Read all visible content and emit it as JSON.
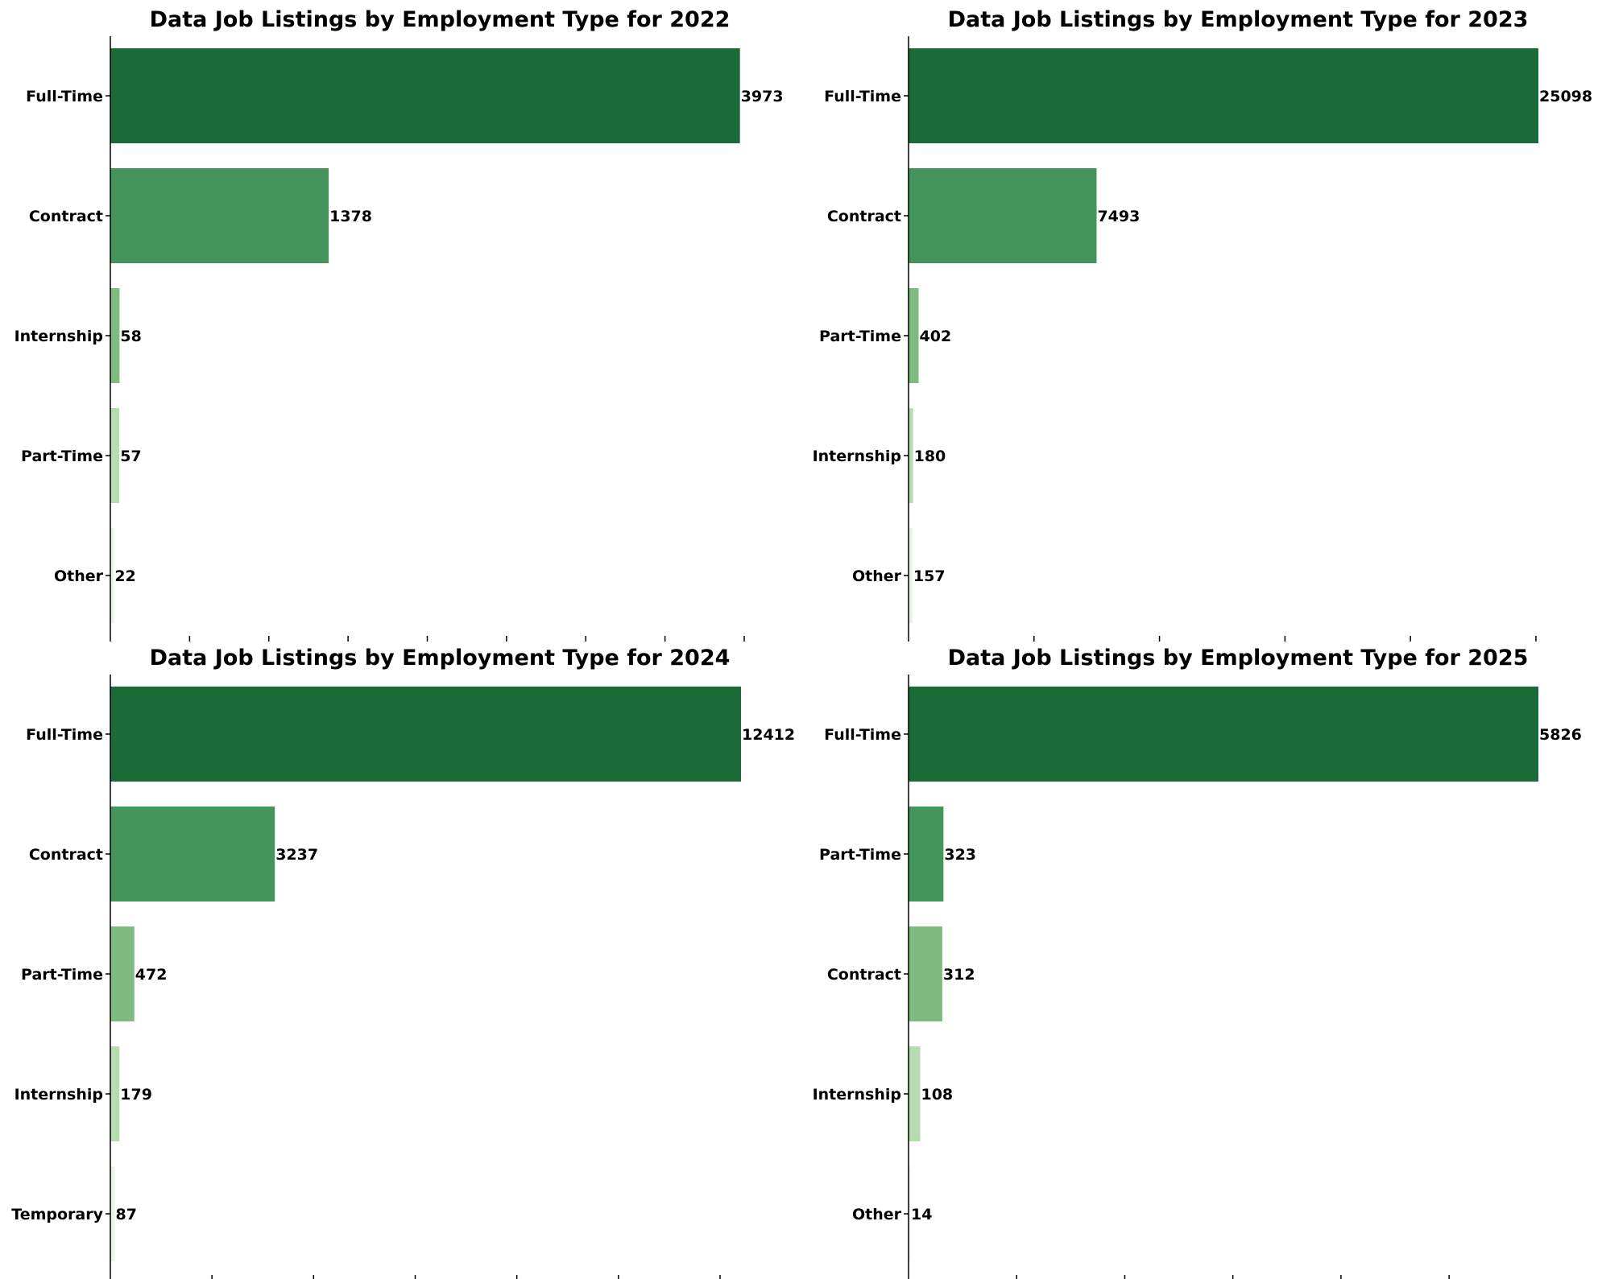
{
  "palette": [
    "#1a6b38",
    "#44955c",
    "#7fbb7f",
    "#b5ddb0",
    "#e8f5e4"
  ],
  "chart_data": [
    {
      "type": "bar",
      "orientation": "horizontal",
      "title": "Data Job Listings by Employment Type for 2022",
      "categories": [
        "Full-Time",
        "Contract",
        "Internship",
        "Part-Time",
        "Other"
      ],
      "values": [
        3973,
        1378,
        58,
        57,
        22
      ],
      "xlim": [
        0,
        4000
      ],
      "x_tick_count": 9,
      "x_tick_labels_shown": false
    },
    {
      "type": "bar",
      "orientation": "horizontal",
      "title": "Data Job Listings by Employment Type for 2023",
      "categories": [
        "Full-Time",
        "Contract",
        "Part-Time",
        "Internship",
        "Other"
      ],
      "values": [
        25098,
        7493,
        402,
        180,
        157
      ],
      "xlim": [
        0,
        25098
      ],
      "x_tick_count": 6,
      "x_tick_labels_shown": false
    },
    {
      "type": "bar",
      "orientation": "horizontal",
      "title": "Data Job Listings by Employment Type for 2024",
      "categories": [
        "Full-Time",
        "Contract",
        "Part-Time",
        "Internship",
        "Temporary"
      ],
      "values": [
        12412,
        3237,
        472,
        179,
        87
      ],
      "xlim": [
        0,
        12412
      ],
      "x_tick_count": 7,
      "x_tick_labels_shown": false
    },
    {
      "type": "bar",
      "orientation": "horizontal",
      "title": "Data Job Listings by Employment Type for 2025",
      "categories": [
        "Full-Time",
        "Part-Time",
        "Contract",
        "Internship",
        "Other"
      ],
      "values": [
        5826,
        323,
        312,
        108,
        14
      ],
      "xlim": [
        0,
        5826
      ],
      "x_tick_count": 7,
      "x_tick_labels_shown": false
    }
  ]
}
